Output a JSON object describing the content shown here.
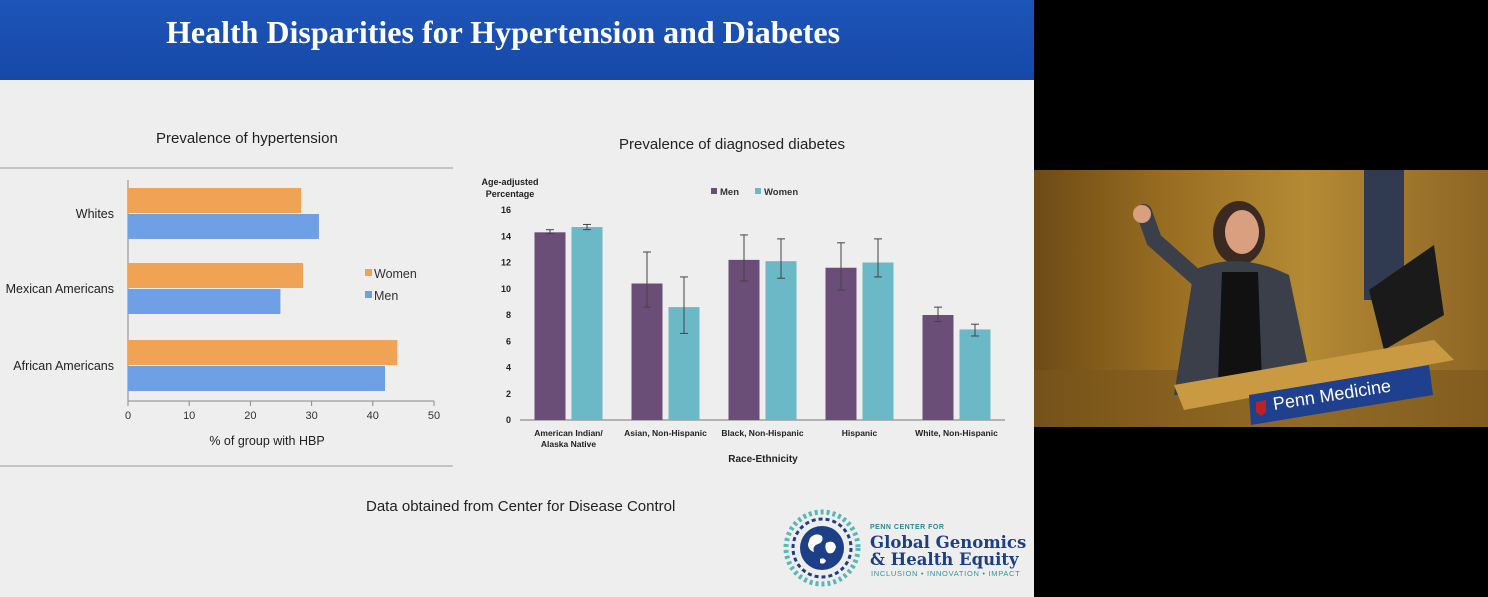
{
  "slide": {
    "title": "Health Disparities for Hypertension and Diabetes",
    "footnote": "Data obtained from Center for Disease Control",
    "colors": {
      "banner": "#1a50b2",
      "women_bar": "#f0a354",
      "men_bar": "#6f9fe4",
      "diabetes_men": "#6a4e78",
      "diabetes_women": "#6bb8c6"
    }
  },
  "logo": {
    "small": "PENN CENTER FOR",
    "line1": "Global Genomics",
    "line2": "& Health Equity",
    "tagline": "INCLUSION • INNOVATION • IMPACT",
    "icon": "dna-globe-icon"
  },
  "video": {
    "podium_sign": "Penn Medicine",
    "icon": "penn-shield-icon",
    "scene": "speaker-at-podium"
  },
  "chart_data": [
    {
      "type": "bar",
      "orientation": "horizontal",
      "title": "Prevalence of hypertension",
      "xlabel": "% of group with HBP",
      "ylabel": "",
      "categories": [
        "Whites",
        "Mexican Americans",
        "African Americans"
      ],
      "series": [
        {
          "name": "Women",
          "values": [
            28.3,
            28.6,
            44.0
          ]
        },
        {
          "name": "Men",
          "values": [
            31.2,
            24.9,
            42.0
          ]
        }
      ],
      "xlim": [
        0,
        50
      ],
      "xticks": [
        "0",
        "10",
        "20",
        "30",
        "40",
        "50"
      ],
      "legend": "right",
      "grid": false
    },
    {
      "type": "bar",
      "title": "Prevalence of diagnosed diabetes",
      "ylabel": "Age-adjusted Percentage",
      "xlabel": "Race-Ethnicity",
      "categories": [
        "American Indian/ Alaska Native",
        "Asian, Non-Hispanic",
        "Black, Non-Hispanic",
        "Hispanic",
        "White, Non-Hispanic"
      ],
      "series": [
        {
          "name": "Men",
          "values": [
            14.3,
            10.4,
            12.2,
            11.6,
            8.0
          ],
          "error_low": [
            14.2,
            8.6,
            10.6,
            9.9,
            7.5
          ],
          "error_high": [
            14.5,
            12.8,
            14.1,
            13.5,
            8.6
          ]
        },
        {
          "name": "Women",
          "values": [
            14.7,
            8.6,
            12.1,
            12.0,
            6.9
          ],
          "error_low": [
            14.5,
            6.6,
            10.8,
            10.9,
            6.4
          ],
          "error_high": [
            14.9,
            10.9,
            13.8,
            13.8,
            7.3
          ]
        }
      ],
      "ylim": [
        0,
        16
      ],
      "yticks": [
        "0",
        "2",
        "4",
        "6",
        "8",
        "10",
        "12",
        "14",
        "16"
      ],
      "legend": "top",
      "grid": false
    }
  ]
}
